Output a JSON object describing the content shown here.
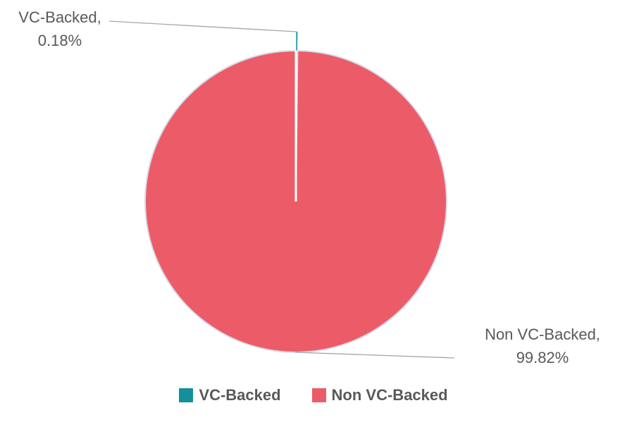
{
  "chart_data": {
    "type": "pie",
    "categories": [
      "VC-Backed",
      "Non VC-Backed"
    ],
    "values": [
      0.18,
      99.82
    ],
    "value_labels": [
      "VC-Backed,\n0.18%",
      "Non VC-Backed,\n99.82%"
    ],
    "colors": [
      "#12919a",
      "#ec5c68"
    ],
    "legend": "bottom"
  }
}
